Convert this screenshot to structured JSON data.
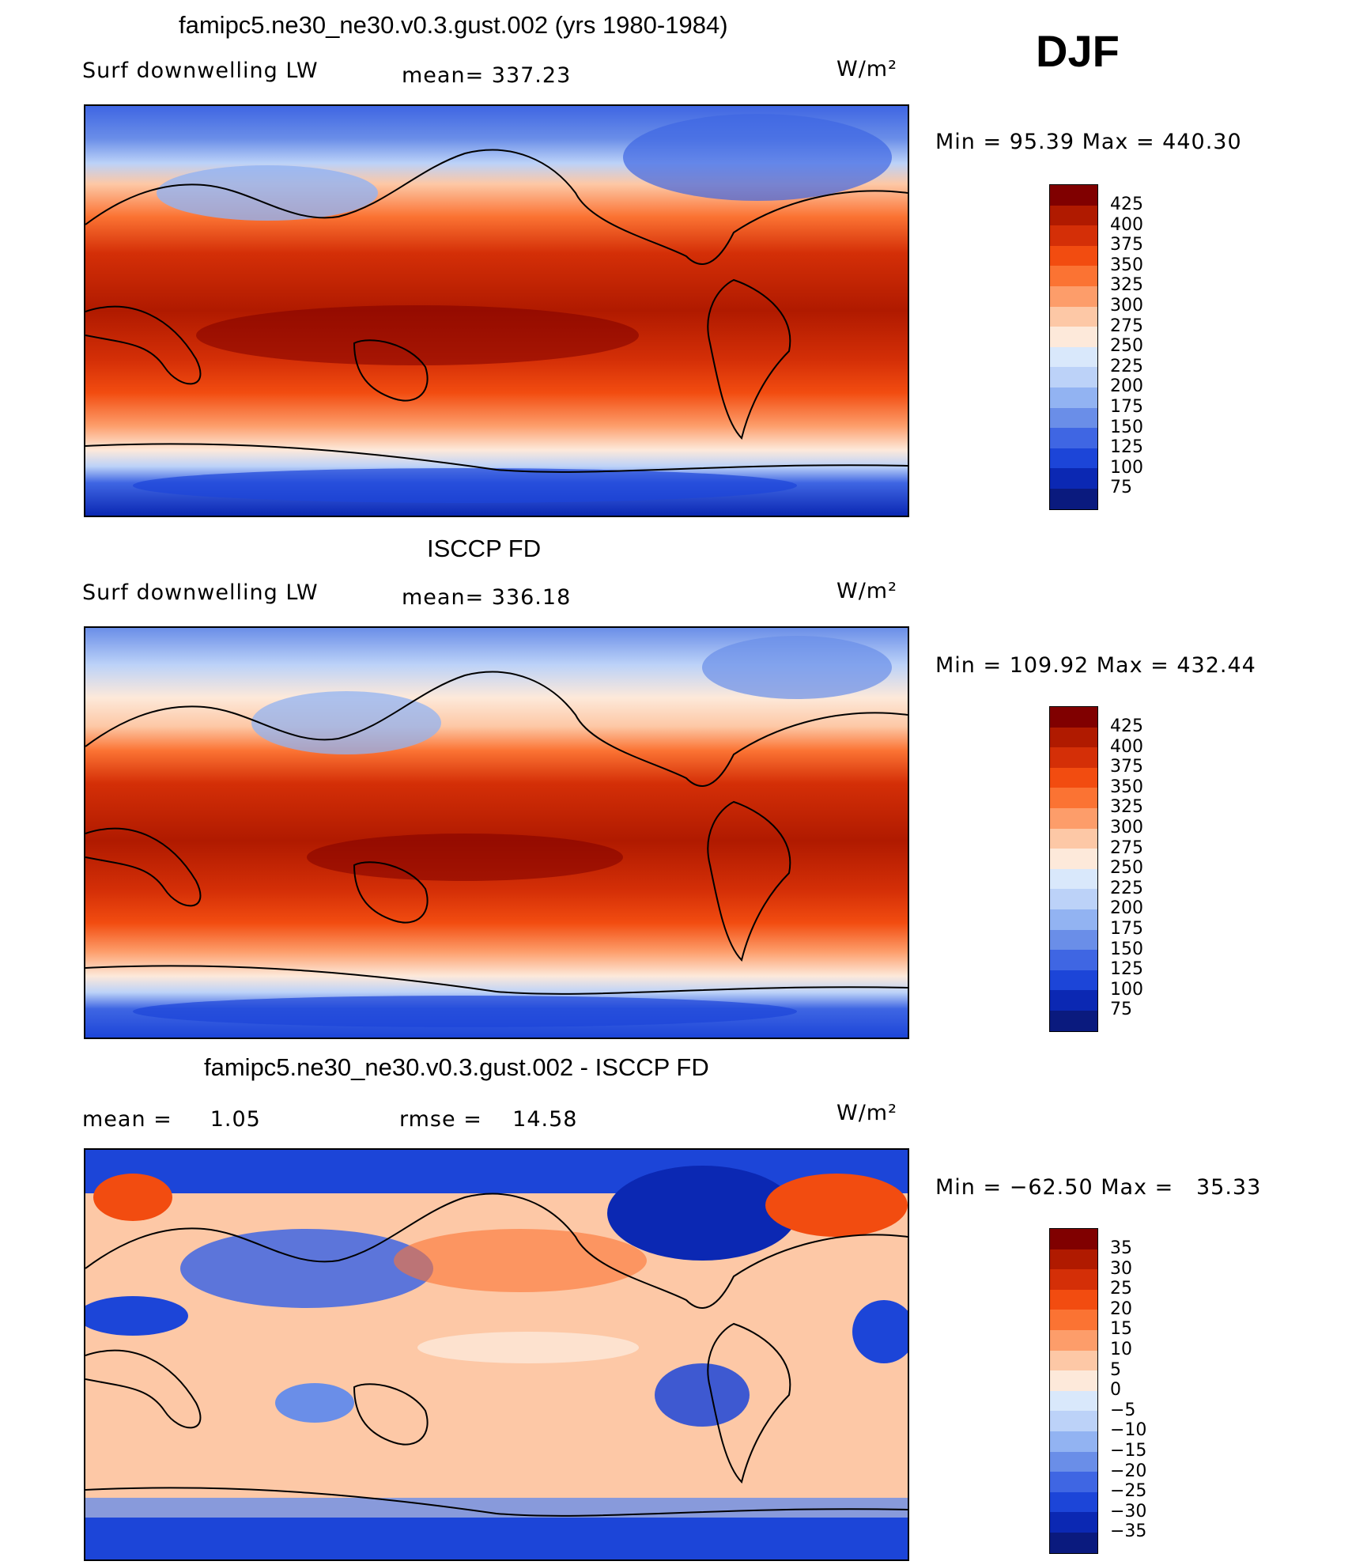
{
  "season": "DJF",
  "units": "W/m²",
  "panels": [
    {
      "title": "famipc5.ne30_ne30.v0.3.gust.002 (yrs 1980-1984)",
      "variable": "Surf downwelling LW",
      "stat1": "mean= 337.23",
      "stat2": "",
      "minmax": "Min =   95.39 Max = 440.30",
      "colorbar": {
        "labels": [
          "425",
          "400",
          "375",
          "350",
          "325",
          "300",
          "275",
          "250",
          "225",
          "200",
          "175",
          "150",
          "125",
          "100",
          "75"
        ],
        "colors": [
          "#800000",
          "#b01a00",
          "#d42f07",
          "#f24c10",
          "#fb7333",
          "#fd9d6a",
          "#fdc8a6",
          "#fde9da",
          "#d9e8fb",
          "#bcd2f8",
          "#92b3f2",
          "#6a8ee8",
          "#3f66e3",
          "#1c45d8",
          "#0b28b3",
          "#0a1a7e"
        ]
      }
    },
    {
      "title": "ISCCP FD",
      "variable": "Surf downwelling LW",
      "stat1": "mean= 336.18",
      "stat2": "",
      "minmax": "Min = 109.92 Max = 432.44",
      "colorbar": {
        "labels": [
          "425",
          "400",
          "375",
          "350",
          "325",
          "300",
          "275",
          "250",
          "225",
          "200",
          "175",
          "150",
          "125",
          "100",
          "75"
        ],
        "colors": [
          "#800000",
          "#b01a00",
          "#d42f07",
          "#f24c10",
          "#fb7333",
          "#fd9d6a",
          "#fdc8a6",
          "#fde9da",
          "#d9e8fb",
          "#bcd2f8",
          "#92b3f2",
          "#6a8ee8",
          "#3f66e3",
          "#1c45d8",
          "#0b28b3",
          "#0a1a7e"
        ]
      }
    },
    {
      "title": "famipc5.ne30_ne30.v0.3.gust.002 - ISCCP FD",
      "variable": "",
      "stat1": "mean =     1.05",
      "stat2": "rmse =    14.58",
      "minmax": "Min = −62.50 Max =   35.33",
      "colorbar": {
        "labels": [
          "35",
          "30",
          "25",
          "20",
          "15",
          "10",
          "5",
          "0",
          "−5",
          "−10",
          "−15",
          "−20",
          "−25",
          "−30",
          "−35"
        ],
        "colors": [
          "#800000",
          "#b01a00",
          "#d42f07",
          "#f24c10",
          "#fb7333",
          "#fd9d6a",
          "#fdc8a6",
          "#fde9da",
          "#d9e8fb",
          "#bcd2f8",
          "#92b3f2",
          "#6a8ee8",
          "#3f66e3",
          "#1c45d8",
          "#0b28b3",
          "#0a1a7e"
        ]
      }
    }
  ]
}
